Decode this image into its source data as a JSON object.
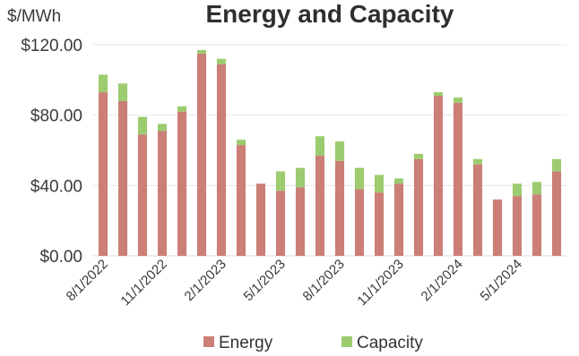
{
  "chart_data": {
    "type": "bar",
    "stacked": true,
    "title": "Energy and Capacity",
    "ylabel": "$/MWh",
    "ylim": [
      0,
      120
    ],
    "yticks": [
      "$0.00",
      "$40.00",
      "$80.00",
      "$120.00"
    ],
    "ytick_values": [
      0,
      40,
      80,
      120
    ],
    "grid": true,
    "legend_position": "bottom",
    "categories": [
      "8/1/2022",
      "9/1/2022",
      "10/1/2022",
      "11/1/2022",
      "12/1/2022",
      "1/1/2023",
      "2/1/2023",
      "3/1/2023",
      "4/1/2023",
      "5/1/2023",
      "6/1/2023",
      "7/1/2023",
      "8/1/2023",
      "9/1/2023",
      "10/1/2023",
      "11/1/2023",
      "12/1/2023",
      "1/1/2024",
      "2/1/2024",
      "3/1/2024",
      "4/1/2024",
      "5/1/2024",
      "6/1/2024",
      "7/1/2024"
    ],
    "xtick_labels": [
      "8/1/2022",
      "11/1/2022",
      "2/1/2023",
      "5/1/2023",
      "8/1/2023",
      "11/1/2023",
      "2/1/2024",
      "5/1/2024"
    ],
    "xtick_indices": [
      0,
      3,
      6,
      9,
      12,
      15,
      18,
      21
    ],
    "series": [
      {
        "name": "Energy",
        "color": "#cb7f77",
        "values": [
          93,
          88,
          69,
          71,
          82,
          115,
          109,
          63,
          41,
          37,
          39,
          57,
          54,
          38,
          36,
          41,
          55,
          91,
          87,
          52,
          32,
          34,
          35,
          48
        ]
      },
      {
        "name": "Capacity",
        "color": "#9ccc6f",
        "values": [
          10,
          10,
          10,
          4,
          3,
          2,
          3,
          3,
          0,
          11,
          11,
          11,
          11,
          12,
          10,
          3,
          3,
          2,
          3,
          3,
          0,
          7,
          7,
          7
        ]
      }
    ]
  }
}
